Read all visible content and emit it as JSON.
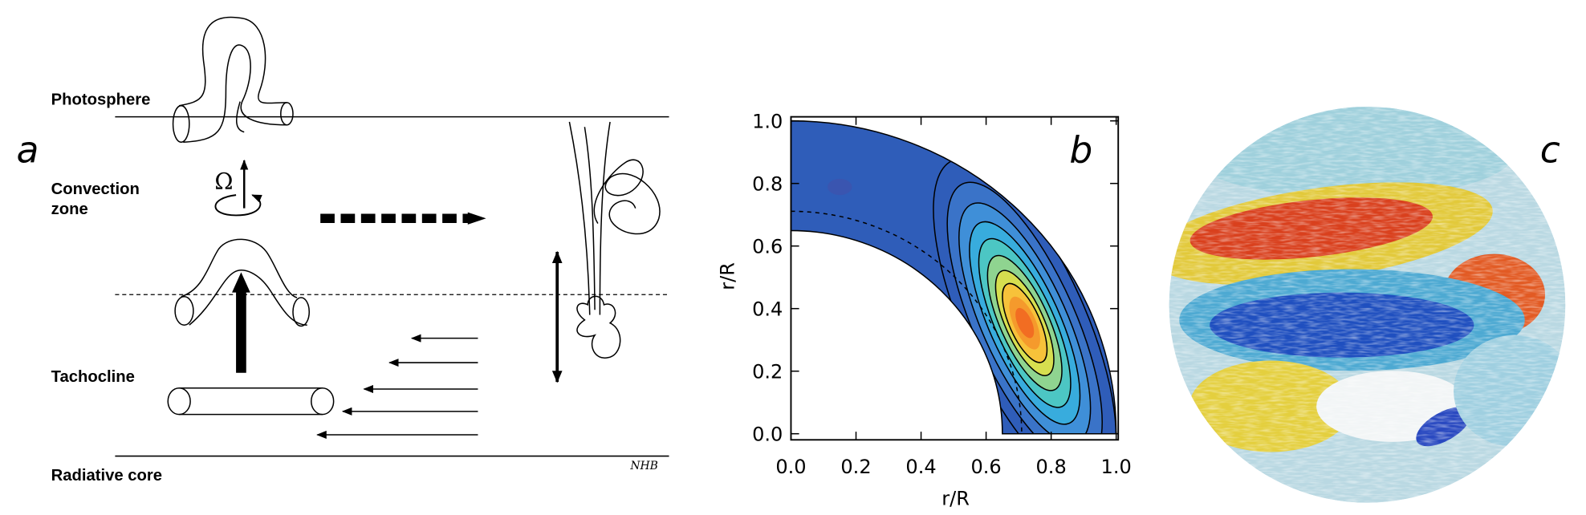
{
  "panel_labels": [
    "a",
    "b",
    "c"
  ],
  "diagram": {
    "photosphere": "Photosphere",
    "convection_zone": [
      "Convection",
      "zone"
    ],
    "tachocline": "Tachocline",
    "radiative_core": "Radiative core",
    "omega": "Ω",
    "signature": "NHB"
  },
  "chart_data": {
    "type": "contour",
    "xlabel": "r/R",
    "ylabel": "r/R",
    "xlim": [
      0,
      1
    ],
    "ylim": [
      0,
      1
    ],
    "xticks": [
      {
        "value": 0,
        "label": "0.0"
      },
      0.2,
      0.4,
      0.6,
      0.8,
      {
        "value": 1,
        "label": "1.0"
      }
    ],
    "yticks": [
      {
        "value": 0,
        "label": "0.0"
      },
      0.2,
      0.4,
      0.6,
      0.8,
      {
        "value": 1,
        "label": "1.0"
      }
    ]
  }
}
